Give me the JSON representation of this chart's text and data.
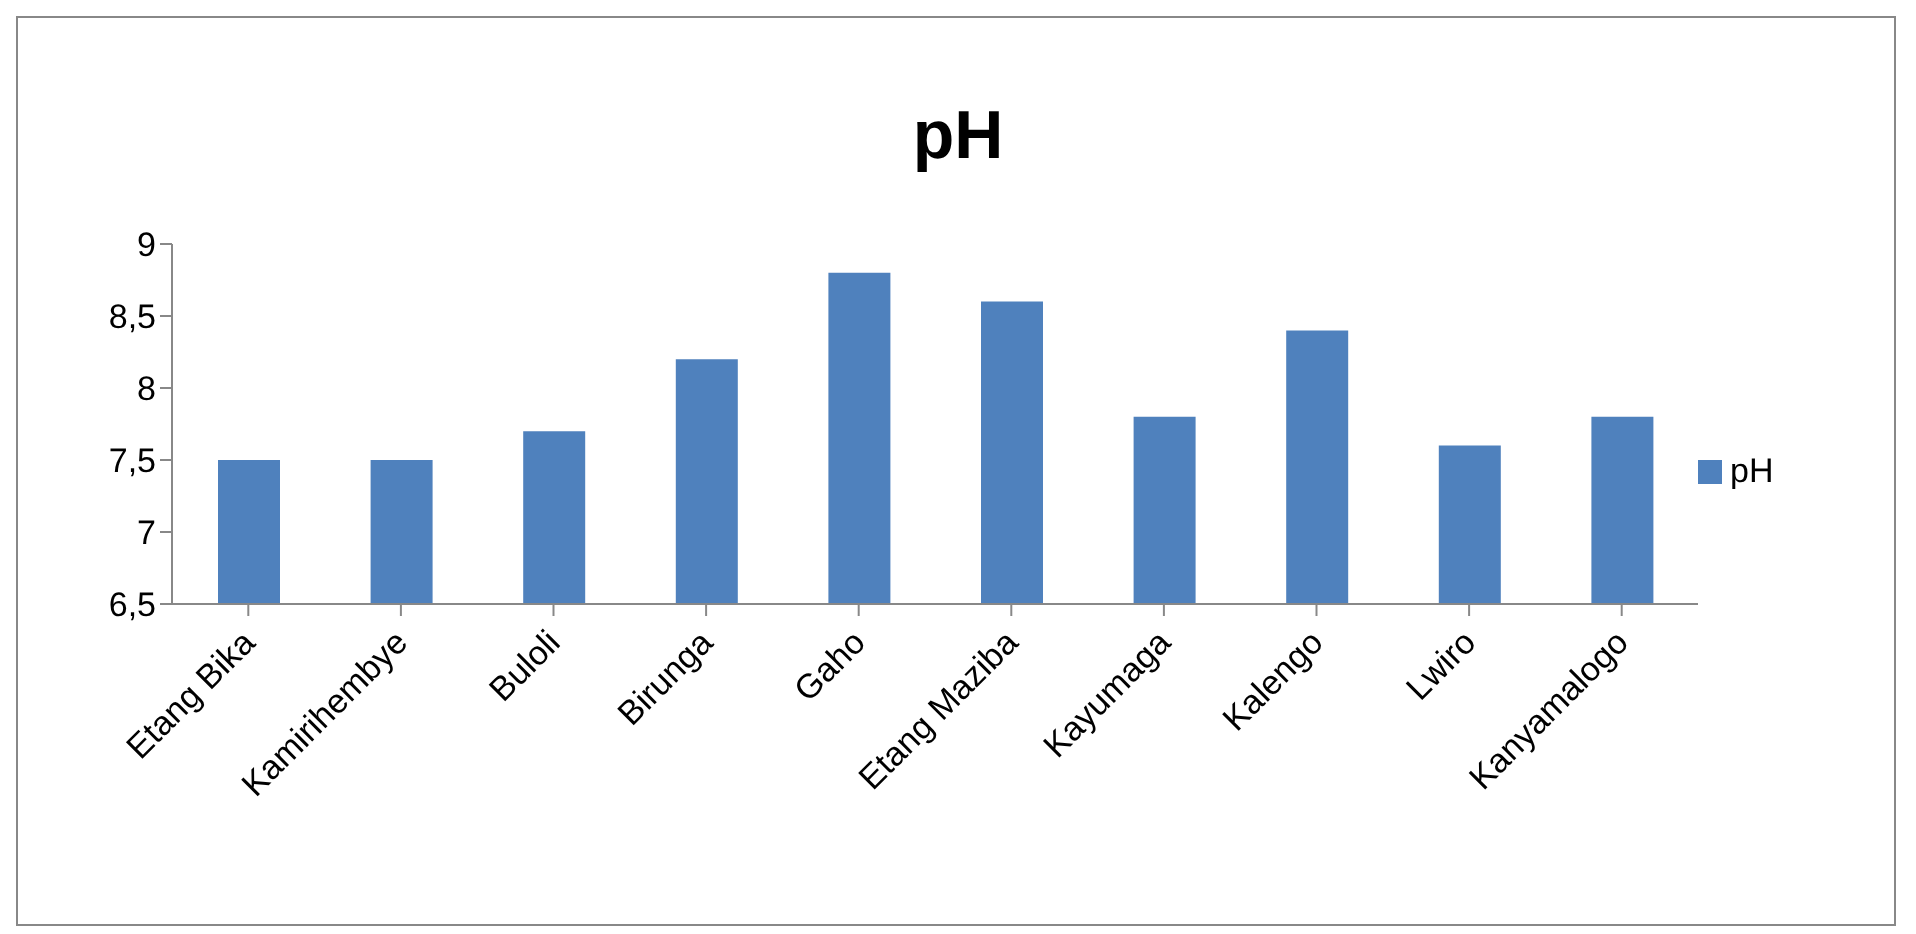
{
  "chart_data": {
    "type": "bar",
    "title": "pH",
    "categories": [
      "Etang Bika",
      "Kamirihembye",
      "Buloli",
      "Birunga",
      "Gaho",
      "Etang Maziba",
      "Kayumaga",
      "Kalengo",
      "Lwiro",
      "Kanyamalogo"
    ],
    "series": [
      {
        "name": "pH",
        "color": "#4f81bd",
        "values": [
          7.5,
          7.5,
          7.7,
          8.2,
          8.8,
          8.6,
          7.8,
          8.4,
          7.6,
          7.8
        ]
      }
    ],
    "ylim": [
      6.5,
      9
    ],
    "yticks": [
      {
        "value": 6.5,
        "label": "6,5"
      },
      7,
      {
        "value": 7.5,
        "label": "7,5"
      },
      8,
      {
        "value": 8.5,
        "label": "8,5"
      },
      9
    ],
    "grid": false,
    "legend": "right"
  }
}
